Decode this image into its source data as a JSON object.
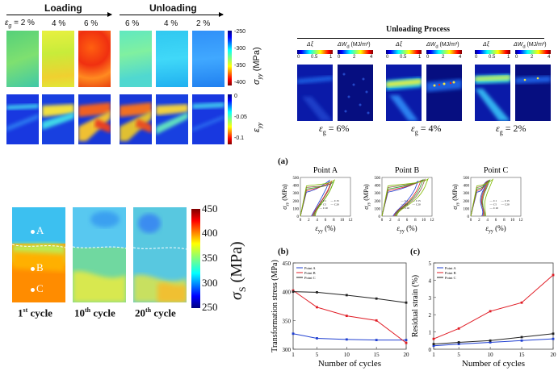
{
  "loading_figure": {
    "loading_label": "Loading",
    "unloading_label": "Unloading",
    "strain_prefix": "ε",
    "strain_sub": "g",
    "strain_eq": "= 2 %",
    "strain_labels": [
      "4 %",
      "6 %",
      "6 %",
      "4 %",
      "2 %"
    ],
    "stress_colorbar": {
      "ticks": [
        "-250",
        "-300",
        "-350",
        "-400"
      ],
      "label_main": "σ",
      "label_sub": "yy",
      "label_unit": "(MPa)"
    },
    "strain_colorbar": {
      "ticks": [
        "0",
        "-0.05",
        "-0.1"
      ],
      "label_main": "ε",
      "label_sub": "yy"
    }
  },
  "unloading_process": {
    "title": "Unloading Process",
    "col_labels": [
      "Δξ",
      "ΔW",
      "Δξ",
      "ΔW",
      "Δξ",
      "ΔW"
    ],
    "wd_sub": "d",
    "wd_unit": "(MJ/m³)",
    "scale_ticks": [
      "0",
      "0.5",
      "1",
      "0",
      "2",
      "4"
    ],
    "strain_prefix": "ε",
    "strain_sub": "g",
    "captions": [
      "= 6%",
      "= 4%",
      "= 2%"
    ]
  },
  "cycle_maps": {
    "points": [
      "A",
      "B",
      "C"
    ],
    "cycle_labels": [
      "1",
      "10",
      "20"
    ],
    "cycle_sups": [
      "st",
      "th",
      "th"
    ],
    "cycle_word": "cycle",
    "colorbar_ticks": [
      "450",
      "400",
      "350",
      "300",
      "250"
    ],
    "colorbar_label_main": "σ",
    "colorbar_label_sub": "S",
    "colorbar_unit": "(MPa)"
  },
  "panel_a": {
    "tag": "(a)",
    "titles": [
      "Point A",
      "Point B",
      "Point C"
    ],
    "y_label": "σ",
    "y_sub": "yy",
    "y_unit": "(MPa)",
    "x_label": "ε",
    "x_sub": "yy",
    "x_unit": "(%)",
    "y_ticks": [
      "0",
      "100",
      "200",
      "300",
      "400",
      "500"
    ],
    "x_ticks": [
      "0",
      "2",
      "4",
      "6",
      "8",
      "10",
      "12"
    ],
    "legend": [
      "C1",
      "C5",
      "C10",
      "C15",
      "C20"
    ]
  },
  "chart_data": [
    {
      "type": "line",
      "tag": "(b)",
      "title": "",
      "xlabel": "Number of cycles",
      "ylabel": "Transformation stress (MPa)",
      "x": [
        1,
        5,
        10,
        15,
        20
      ],
      "xlim": [
        1,
        20
      ],
      "ylim": [
        300,
        450
      ],
      "y_ticks": [
        "300",
        "350",
        "400",
        "450"
      ],
      "x_ticks": [
        "1",
        "5",
        "10",
        "15",
        "20"
      ],
      "series": [
        {
          "name": "Point A",
          "color": "#1f3fd1",
          "values": [
            327,
            319,
            317,
            316,
            316
          ]
        },
        {
          "name": "Point B",
          "color": "#e01b24",
          "values": [
            402,
            373,
            358,
            350,
            311
          ]
        },
        {
          "name": "Point C",
          "color": "#222222",
          "values": [
            400,
            399,
            394,
            388,
            381
          ]
        }
      ]
    },
    {
      "type": "line",
      "tag": "(c)",
      "title": "",
      "xlabel": "Number of cycles",
      "ylabel": "Residual strain (%)",
      "x": [
        1,
        5,
        10,
        15,
        20
      ],
      "xlim": [
        1,
        20
      ],
      "ylim": [
        0,
        5
      ],
      "y_ticks": [
        "0",
        "1",
        "2",
        "3",
        "4",
        "5"
      ],
      "x_ticks": [
        "1",
        "5",
        "10",
        "15",
        "20"
      ],
      "series": [
        {
          "name": "Point A",
          "color": "#1f3fd1",
          "values": [
            0.2,
            0.3,
            0.4,
            0.5,
            0.6
          ]
        },
        {
          "name": "Point B",
          "color": "#e01b24",
          "values": [
            0.6,
            1.2,
            2.2,
            2.7,
            4.3
          ]
        },
        {
          "name": "Point C",
          "color": "#222222",
          "values": [
            0.3,
            0.4,
            0.5,
            0.7,
            0.9
          ]
        }
      ]
    }
  ]
}
